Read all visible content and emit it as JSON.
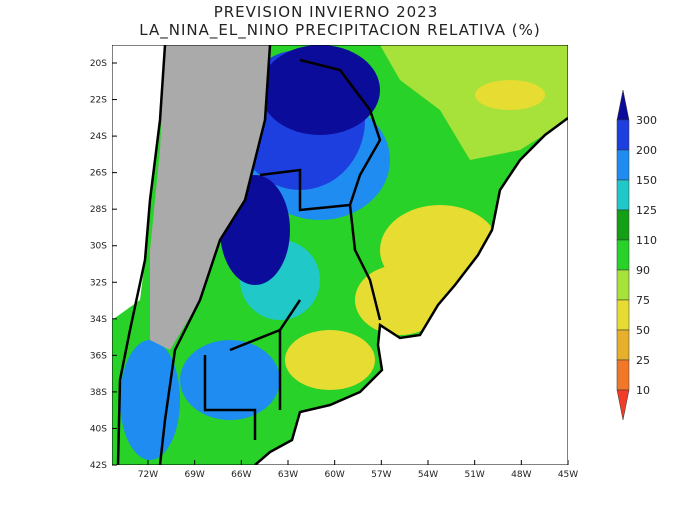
{
  "header": {
    "title": "PREVISION INVIERNO 2023",
    "subtitle": "LA_NINA_EL_NINO PRECIPITACION RELATIVA (%)"
  },
  "map": {
    "lat_labels": [
      "20S",
      "22S",
      "24S",
      "26S",
      "28S",
      "30S",
      "32S",
      "34S",
      "36S",
      "38S",
      "40S",
      "42S"
    ],
    "lon_labels": [
      "72W",
      "69W",
      "66W",
      "63W",
      "60W",
      "57W",
      "54W",
      "51W",
      "48W",
      "45W"
    ]
  },
  "colorbar": {
    "levels": [
      300,
      200,
      150,
      125,
      110,
      90,
      75,
      50,
      25,
      10
    ],
    "colors": [
      "#0c0c9a",
      "#1e3fe0",
      "#1e8cf0",
      "#20c8c8",
      "#14a014",
      "#28d228",
      "#a6e23a",
      "#e6dc32",
      "#e6b02d",
      "#f07828",
      "#f03c28"
    ]
  }
}
